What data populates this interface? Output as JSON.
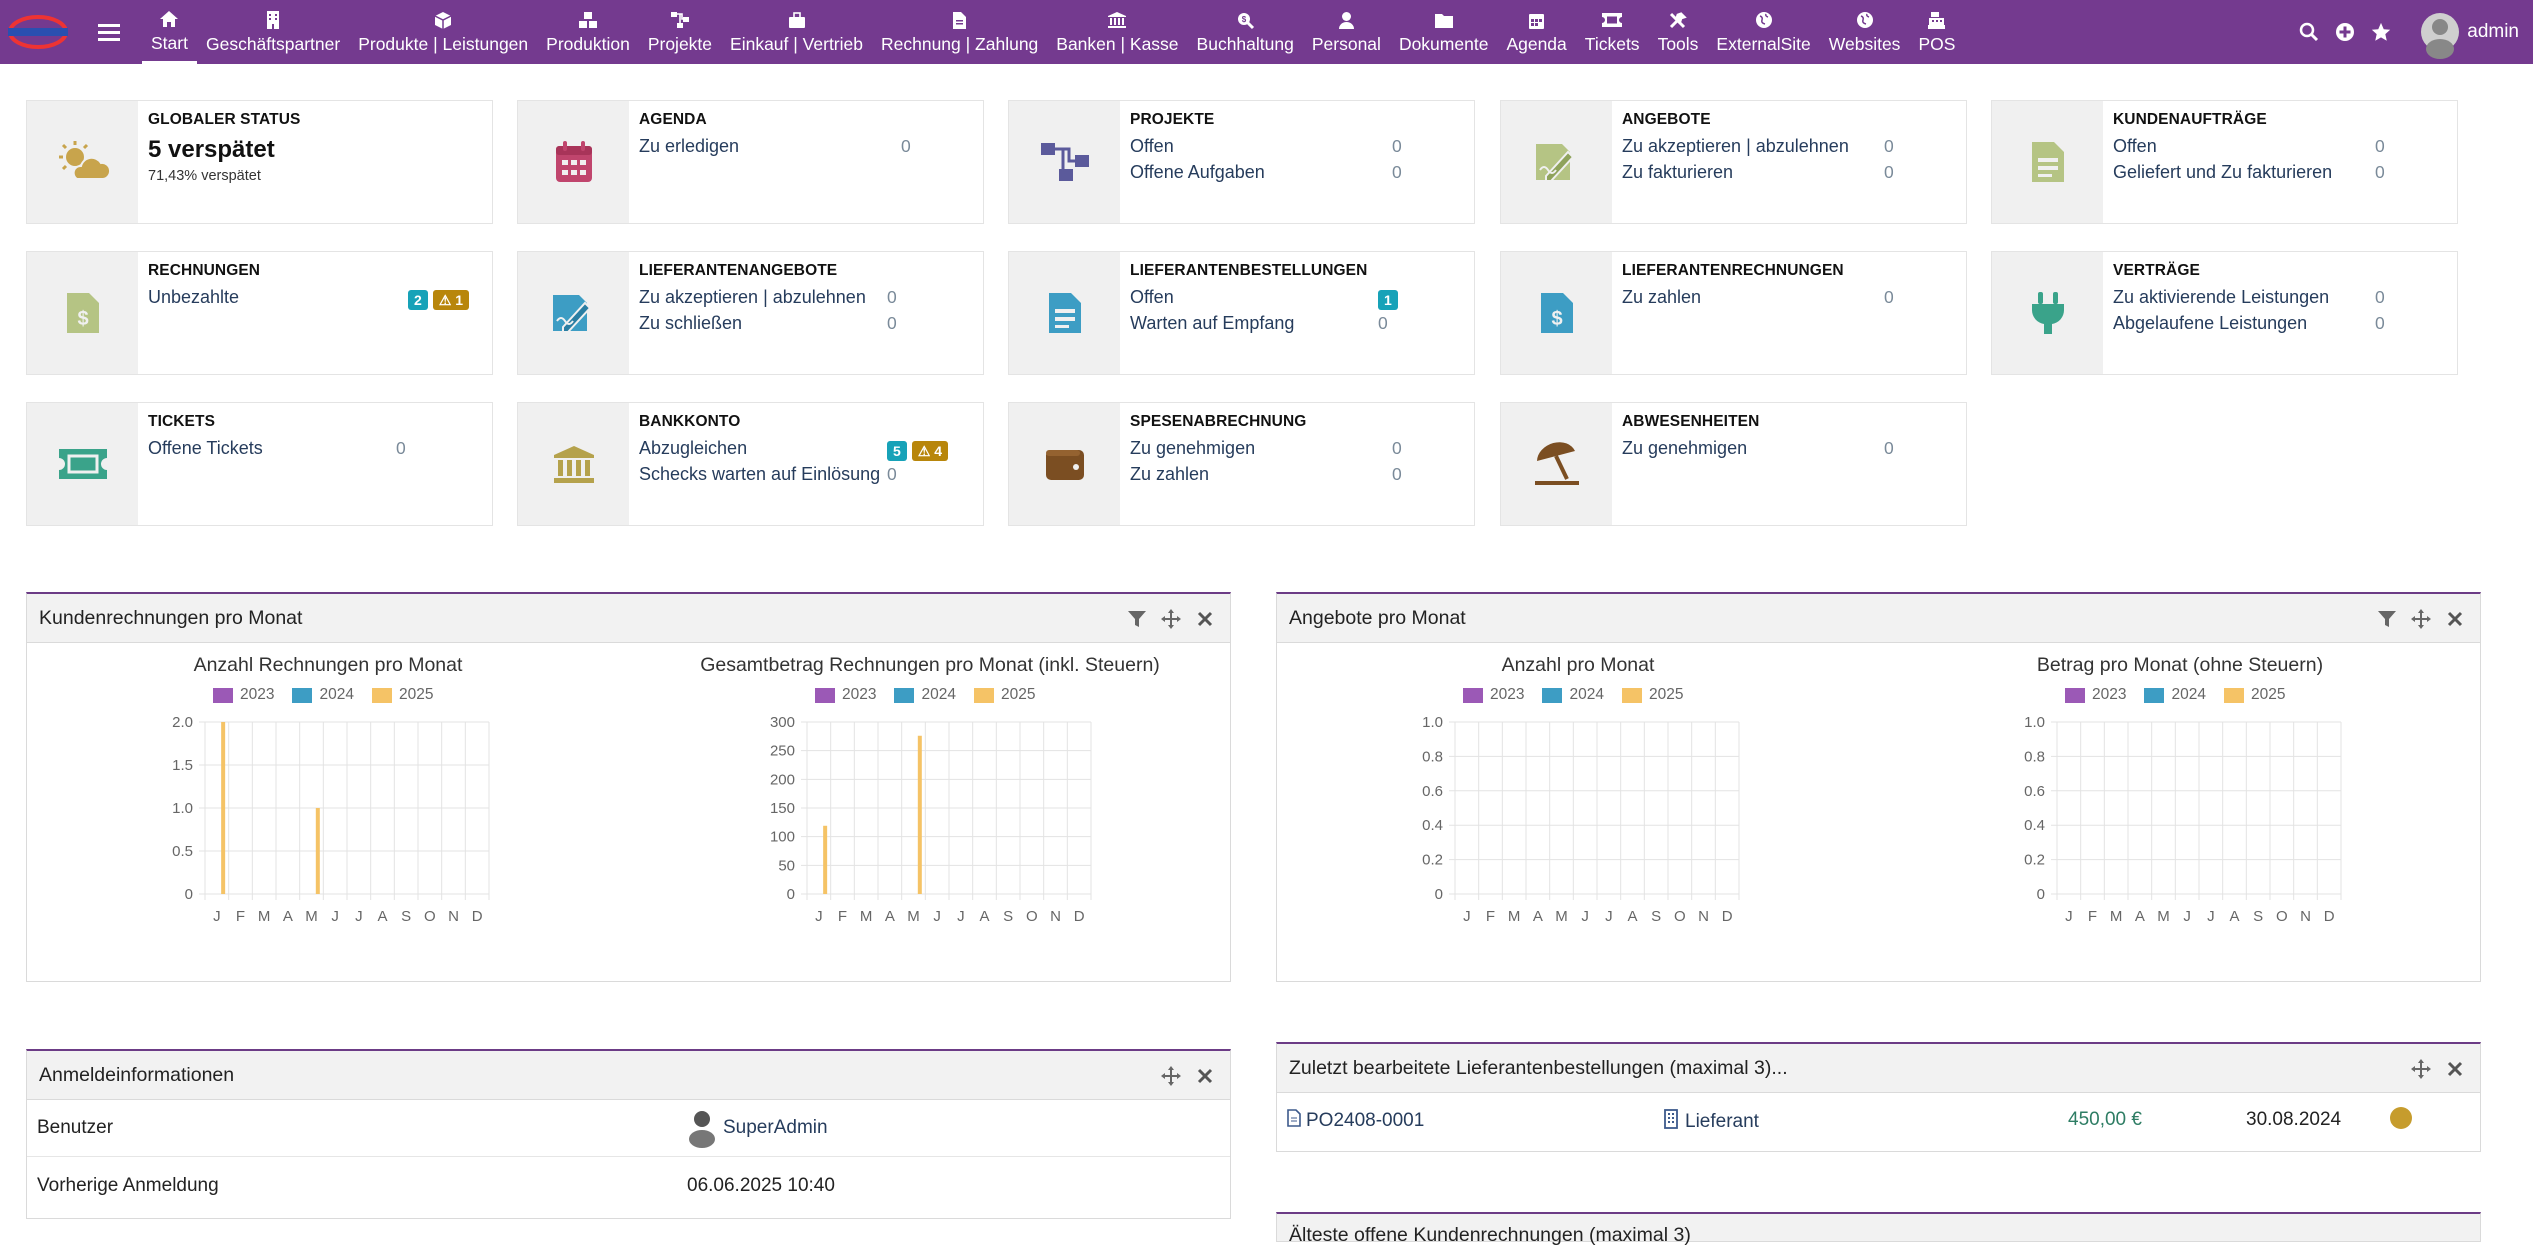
{
  "nav": {
    "items": [
      {
        "label": "Start",
        "icon": "home-icon"
      },
      {
        "label": "Geschäftspartner",
        "icon": "building-icon"
      },
      {
        "label": "Produkte | Leistungen",
        "icon": "cube-icon"
      },
      {
        "label": "Produktion",
        "icon": "cubes-icon"
      },
      {
        "label": "Projekte",
        "icon": "sitemap-icon"
      },
      {
        "label": "Einkauf | Vertrieb",
        "icon": "briefcase-icon"
      },
      {
        "label": "Rechnung | Zahlung",
        "icon": "file-invoice-icon"
      },
      {
        "label": "Banken | Kasse",
        "icon": "bank-icon"
      },
      {
        "label": "Buchhaltung",
        "icon": "search-dollar-icon"
      },
      {
        "label": "Personal",
        "icon": "user-icon"
      },
      {
        "label": "Dokumente",
        "icon": "folder-icon"
      },
      {
        "label": "Agenda",
        "icon": "calendar-icon"
      },
      {
        "label": "Tickets",
        "icon": "ticket-icon"
      },
      {
        "label": "Tools",
        "icon": "tools-icon"
      },
      {
        "label": "ExternalSite",
        "icon": "globe-icon"
      },
      {
        "label": "Websites",
        "icon": "globe-icon"
      },
      {
        "label": "POS",
        "icon": "cash-register-icon"
      }
    ],
    "user": "admin"
  },
  "cards": {
    "status": {
      "title": "GLOBALER STATUS",
      "value": "5 verspätet",
      "sub": "71,43% verspätet"
    },
    "agenda": {
      "title": "AGENDA",
      "rows": [
        {
          "label": "Zu erledigen",
          "count": "0"
        }
      ]
    },
    "projekte": {
      "title": "PROJEKTE",
      "rows": [
        {
          "label": "Offen",
          "count": "0"
        },
        {
          "label": "Offene Aufgaben",
          "count": "0"
        }
      ]
    },
    "angebote": {
      "title": "ANGEBOTE",
      "rows": [
        {
          "label": "Zu akzeptieren | abzulehnen",
          "count": "0"
        },
        {
          "label": "Zu fakturieren",
          "count": "0"
        }
      ]
    },
    "kundenauftraege": {
      "title": "KUNDENAUFTRÄGE",
      "rows": [
        {
          "label": "Offen",
          "count": "0"
        },
        {
          "label": "Geliefert und Zu fakturieren",
          "count": "0"
        }
      ]
    },
    "rechnungen": {
      "title": "RECHNUNGEN",
      "rows": [
        {
          "label": "Unbezahlte",
          "badge1": "2",
          "badge2": "1"
        }
      ]
    },
    "lieferantenangebote": {
      "title": "LIEFERANTENANGEBOTE",
      "rows": [
        {
          "label": "Zu akzeptieren | abzulehnen",
          "count": "0"
        },
        {
          "label": "Zu schließen",
          "count": "0"
        }
      ]
    },
    "lieferantenbestellungen": {
      "title": "LIEFERANTENBESTELLUNGEN",
      "rows": [
        {
          "label": "Offen",
          "badge": "1"
        },
        {
          "label": "Warten auf Empfang",
          "count": "0"
        }
      ]
    },
    "lieferantenrechnungen": {
      "title": "LIEFERANTENRECHNUNGEN",
      "rows": [
        {
          "label": "Zu zahlen",
          "count": "0"
        }
      ]
    },
    "vertraege": {
      "title": "VERTRÄGE",
      "rows": [
        {
          "label": "Zu aktivierende Leistungen",
          "count": "0"
        },
        {
          "label": "Abgelaufene Leistungen",
          "count": "0"
        }
      ]
    },
    "tickets": {
      "title": "TICKETS",
      "rows": [
        {
          "label": "Offene Tickets",
          "count": "0"
        }
      ]
    },
    "bankkonto": {
      "title": "BANKKONTO",
      "rows": [
        {
          "label": "Abzugleichen",
          "badge1": "5",
          "badge2": "4"
        },
        {
          "label": "Schecks warten auf Einlösung",
          "count": "0"
        }
      ]
    },
    "spesen": {
      "title": "SPESENABRECHNUNG",
      "rows": [
        {
          "label": "Zu genehmigen",
          "count": "0"
        },
        {
          "label": "Zu zahlen",
          "count": "0"
        }
      ]
    },
    "abwesenheiten": {
      "title": "ABWESENHEITEN",
      "rows": [
        {
          "label": "Zu genehmigen",
          "count": "0"
        }
      ]
    }
  },
  "boxes": {
    "kundenrechnungen": {
      "title": "Kundenrechnungen pro Monat"
    },
    "angebote": {
      "title": "Angebote pro Monat"
    },
    "anmeldung": {
      "title": "Anmeldeinformationen",
      "rows": [
        {
          "label": "Benutzer",
          "value": "SuperAdmin"
        },
        {
          "label": "Vorherige Anmeldung",
          "value": "06.06.2025 10:40"
        }
      ]
    },
    "lieferantenbestellungen": {
      "title": "Zuletzt bearbeitete Lieferantenbestellungen (maximal 3)...",
      "row": {
        "ref": "PO2408-0001",
        "supplier": "Lieferant",
        "amount": "450,00 €",
        "date": "30.08.2024",
        "status_color": "#c69c2d"
      }
    },
    "next": {
      "title": "Älteste offene Kundenrechnungen (maximal 3)"
    }
  },
  "chart_data": [
    {
      "type": "bar",
      "title": "Anzahl Rechnungen pro Monat",
      "categories": [
        "J",
        "F",
        "M",
        "A",
        "M",
        "J",
        "J",
        "A",
        "S",
        "O",
        "N",
        "D"
      ],
      "ylim": [
        0,
        2
      ],
      "yticks": [
        "0",
        "0.5",
        "1.0",
        "1.5",
        "2.0"
      ],
      "series": [
        {
          "name": "2023",
          "color": "#9b59b6",
          "values": [
            0,
            0,
            0,
            0,
            0,
            0,
            0,
            0,
            0,
            0,
            0,
            0
          ]
        },
        {
          "name": "2024",
          "color": "#3d9dc4",
          "values": [
            0,
            0,
            0,
            0,
            0,
            0,
            0,
            0,
            0,
            0,
            0,
            0
          ]
        },
        {
          "name": "2025",
          "color": "#f5c366",
          "values": [
            2,
            0,
            0,
            0,
            1,
            0,
            0,
            0,
            0,
            0,
            0,
            0
          ]
        }
      ]
    },
    {
      "type": "bar",
      "title": "Gesamtbetrag Rechnungen pro Monat (inkl. Steuern)",
      "categories": [
        "J",
        "F",
        "M",
        "A",
        "M",
        "J",
        "J",
        "A",
        "S",
        "O",
        "N",
        "D"
      ],
      "ylim": [
        0,
        300
      ],
      "yticks": [
        "0",
        "50",
        "100",
        "150",
        "200",
        "250",
        "300"
      ],
      "series": [
        {
          "name": "2023",
          "color": "#9b59b6",
          "values": [
            0,
            0,
            0,
            0,
            0,
            0,
            0,
            0,
            0,
            0,
            0,
            0
          ]
        },
        {
          "name": "2024",
          "color": "#3d9dc4",
          "values": [
            0,
            0,
            0,
            0,
            0,
            0,
            0,
            0,
            0,
            0,
            0,
            0
          ]
        },
        {
          "name": "2025",
          "color": "#f5c366",
          "values": [
            119,
            0,
            0,
            0,
            276,
            0,
            0,
            0,
            0,
            0,
            0,
            0
          ]
        }
      ]
    },
    {
      "type": "bar",
      "title": "Anzahl pro Monat",
      "categories": [
        "J",
        "F",
        "M",
        "A",
        "M",
        "J",
        "J",
        "A",
        "S",
        "O",
        "N",
        "D"
      ],
      "ylim": [
        0,
        1
      ],
      "yticks": [
        "0",
        "0.2",
        "0.4",
        "0.6",
        "0.8",
        "1.0"
      ],
      "series": [
        {
          "name": "2023",
          "color": "#9b59b6",
          "values": [
            0,
            0,
            0,
            0,
            0,
            0,
            0,
            0,
            0,
            0,
            0,
            0
          ]
        },
        {
          "name": "2024",
          "color": "#3d9dc4",
          "values": [
            0,
            0,
            0,
            0,
            0,
            0,
            0,
            0,
            0,
            0,
            0,
            0
          ]
        },
        {
          "name": "2025",
          "color": "#f5c366",
          "values": [
            0,
            0,
            0,
            0,
            0,
            0,
            0,
            0,
            0,
            0,
            0,
            0
          ]
        }
      ]
    },
    {
      "type": "bar",
      "title": "Betrag pro Monat (ohne Steuern)",
      "categories": [
        "J",
        "F",
        "M",
        "A",
        "M",
        "J",
        "J",
        "A",
        "S",
        "O",
        "N",
        "D"
      ],
      "ylim": [
        0,
        1
      ],
      "yticks": [
        "0",
        "0.2",
        "0.4",
        "0.6",
        "0.8",
        "1.0"
      ],
      "series": [
        {
          "name": "2023",
          "color": "#9b59b6",
          "values": [
            0,
            0,
            0,
            0,
            0,
            0,
            0,
            0,
            0,
            0,
            0,
            0
          ]
        },
        {
          "name": "2024",
          "color": "#3d9dc4",
          "values": [
            0,
            0,
            0,
            0,
            0,
            0,
            0,
            0,
            0,
            0,
            0,
            0
          ]
        },
        {
          "name": "2025",
          "color": "#f5c366",
          "values": [
            0,
            0,
            0,
            0,
            0,
            0,
            0,
            0,
            0,
            0,
            0,
            0
          ]
        }
      ]
    }
  ]
}
